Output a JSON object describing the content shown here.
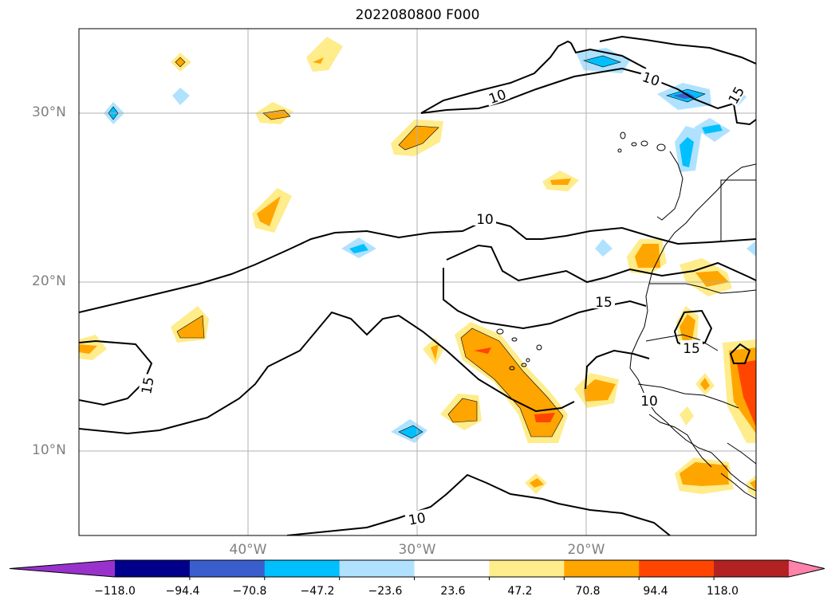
{
  "title": "2022080800 F000",
  "axes": {
    "lat_labels": [
      "30°N",
      "20°N",
      "10°N"
    ],
    "lon_labels": [
      "40°W",
      "30°W",
      "20°W"
    ]
  },
  "contours": {
    "labels": [
      "10",
      "10",
      "10",
      "15",
      "15",
      "15",
      "15",
      "10",
      "10"
    ]
  },
  "colorbar": {
    "ticks": [
      "−118.0",
      "−94.4",
      "−70.8",
      "−47.2",
      "−23.6",
      "23.6",
      "47.2",
      "70.8",
      "94.4",
      "118.0"
    ],
    "colors": [
      "#9932cc",
      "#00008b",
      "#3a5fcd",
      "#00bfff",
      "#b0e2ff",
      "#ffffff",
      "#ffec8b",
      "#ffa500",
      "#ff4500",
      "#b22222",
      "#ff82ab"
    ]
  }
}
